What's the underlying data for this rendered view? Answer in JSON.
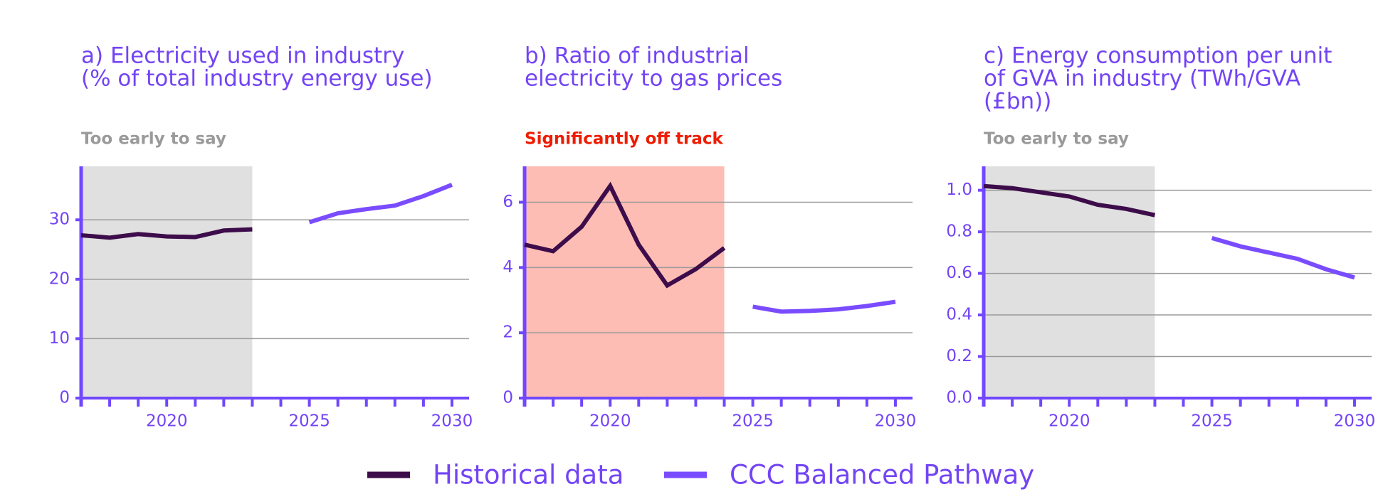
{
  "chart_data": [
    {
      "type": "line",
      "title": [
        "a) Electricity used in industry",
        "(% of total industry energy use)"
      ],
      "status": "Too early to say",
      "status_color": "#9a9a9a",
      "shade": [
        2017,
        2023
      ],
      "shade_color": "#e0e0e0",
      "xlim": [
        2017,
        2030.6
      ],
      "xticks": [
        2020,
        2025,
        2030
      ],
      "xminorticks": [
        2017,
        2018,
        2019,
        2020,
        2021,
        2022,
        2023,
        2024,
        2025,
        2026,
        2027,
        2028,
        2029,
        2030
      ],
      "ylim": [
        0,
        39
      ],
      "yticks": [
        0,
        10,
        20,
        30
      ],
      "grid": true,
      "series": [
        {
          "name": "Historical data",
          "color": "#3d0c4a",
          "x": [
            2017,
            2018,
            2019,
            2020,
            2021,
            2022,
            2023
          ],
          "values": [
            27.4,
            27.0,
            27.6,
            27.2,
            27.1,
            28.2,
            28.4
          ]
        },
        {
          "name": "CCC Balanced Pathway",
          "color": "#7a4cff",
          "x": [
            2025,
            2026,
            2027,
            2028,
            2029,
            2030
          ],
          "values": [
            29.6,
            31.1,
            31.8,
            32.4,
            34.0,
            35.9
          ]
        }
      ]
    },
    {
      "type": "line",
      "title": [
        "b) Ratio of industrial",
        "electricity to gas prices"
      ],
      "status": "Significantly off track",
      "status_color": "#ee1c00",
      "shade": [
        2017,
        2024
      ],
      "shade_color": "#fdbdb4",
      "xlim": [
        2017,
        2030.6
      ],
      "xticks": [
        2020,
        2025,
        2030
      ],
      "xminorticks": [
        2017,
        2018,
        2019,
        2020,
        2021,
        2022,
        2023,
        2024,
        2025,
        2026,
        2027,
        2028,
        2029,
        2030
      ],
      "ylim": [
        0,
        7.1
      ],
      "yticks": [
        0,
        2,
        4,
        6
      ],
      "grid": true,
      "series": [
        {
          "name": "Historical data",
          "color": "#3d0c4a",
          "x": [
            2017,
            2018,
            2019,
            2020,
            2021,
            2022,
            2023,
            2024
          ],
          "values": [
            4.7,
            4.5,
            5.25,
            6.5,
            4.7,
            3.45,
            3.95,
            4.6
          ]
        },
        {
          "name": "CCC Balanced Pathway",
          "color": "#7a4cff",
          "x": [
            2025,
            2026,
            2027,
            2028,
            2029,
            2030
          ],
          "values": [
            2.8,
            2.65,
            2.67,
            2.72,
            2.82,
            2.95
          ]
        }
      ]
    },
    {
      "type": "line",
      "title": [
        "c) Energy consumption per unit",
        "of GVA in industry (TWh/GVA",
        "(£bn))"
      ],
      "status": "Too early to say",
      "status_color": "#9a9a9a",
      "shade": [
        2017,
        2023
      ],
      "shade_color": "#e0e0e0",
      "xlim": [
        2017,
        2030.6
      ],
      "xticks": [
        2020,
        2025,
        2030
      ],
      "xminorticks": [
        2017,
        2018,
        2019,
        2020,
        2021,
        2022,
        2023,
        2024,
        2025,
        2026,
        2027,
        2028,
        2029,
        2030
      ],
      "ylim": [
        0,
        1.115
      ],
      "yticks": [
        {
          "value": 0,
          "label": "0.0"
        },
        0.2,
        0.4,
        0.6,
        0.8,
        {
          "value": 1,
          "label": "1.0"
        }
      ],
      "grid": true,
      "series": [
        {
          "name": "Historical data",
          "color": "#3d0c4a",
          "x": [
            2017,
            2018,
            2019,
            2020,
            2021,
            2022,
            2023
          ],
          "values": [
            1.02,
            1.01,
            0.99,
            0.97,
            0.93,
            0.91,
            0.88
          ]
        },
        {
          "name": "CCC Balanced Pathway",
          "color": "#7a4cff",
          "x": [
            2025,
            2026,
            2027,
            2028,
            2029,
            2030
          ],
          "values": [
            0.77,
            0.73,
            0.7,
            0.67,
            0.62,
            0.58
          ]
        }
      ]
    }
  ]
}
